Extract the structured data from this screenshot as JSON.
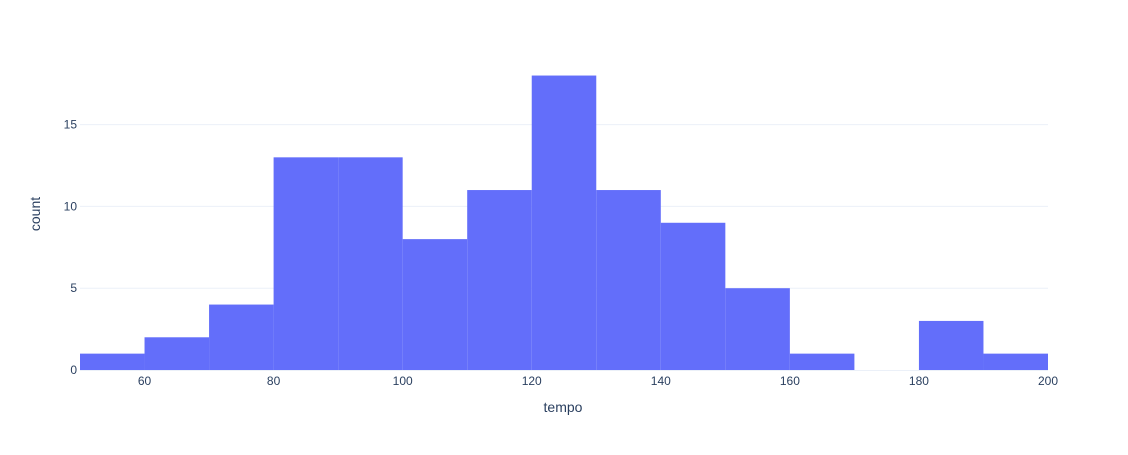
{
  "chart_data": {
    "type": "bar",
    "subtype": "histogram",
    "title": "",
    "xlabel": "tempo",
    "ylabel": "count",
    "x_ticks": [
      60,
      80,
      100,
      120,
      140,
      160,
      180,
      200
    ],
    "y_ticks": [
      0,
      5,
      10,
      15
    ],
    "xlim": [
      50,
      200
    ],
    "ylim": [
      0,
      18.95
    ],
    "bin_edges": [
      50,
      60,
      70,
      80,
      90,
      100,
      110,
      120,
      130,
      140,
      150,
      160,
      170,
      180,
      190,
      200
    ],
    "counts": [
      1,
      2,
      4,
      13,
      13,
      8,
      11,
      18,
      11,
      9,
      5,
      1,
      0,
      3,
      1
    ],
    "grid": "y",
    "legend": false,
    "colors": {
      "bar": "#636efa",
      "grid": "#ebf0f8",
      "text": "#2a3f5f",
      "background": "#ffffff"
    }
  }
}
